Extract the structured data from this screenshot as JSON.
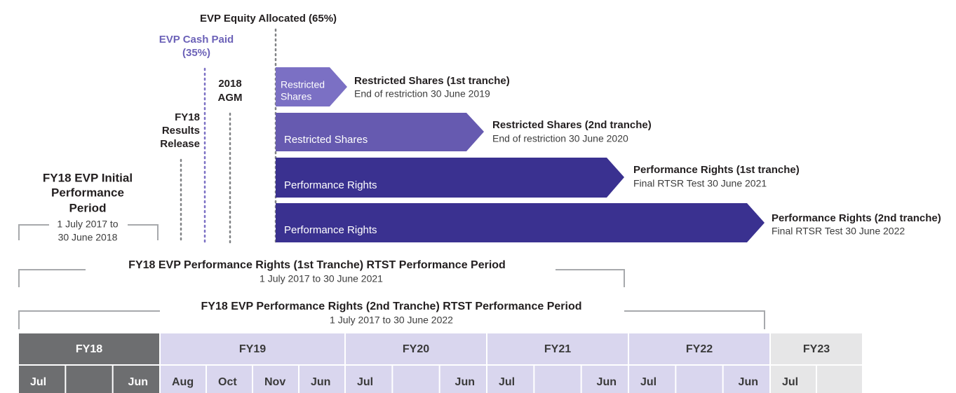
{
  "labels": {
    "equity_allocated": "EVP Equity Allocated (65%)",
    "cash_paid": [
      "EVP Cash Paid",
      "(35%)"
    ],
    "agm": [
      "2018",
      "AGM"
    ],
    "results_release": [
      "FY18",
      "Results",
      "Release"
    ],
    "initial_period": {
      "title": [
        "FY18 EVP Initial",
        "Performance",
        "Period"
      ],
      "sub": [
        "1 July 2017 to",
        "30 June 2018"
      ]
    }
  },
  "bars": [
    {
      "label": [
        "Restricted",
        "Shares"
      ],
      "title": "Restricted Shares (1st tranche)",
      "sub": "End of restriction 30 June 2019"
    },
    {
      "label": [
        "Restricted Shares"
      ],
      "title": "Restricted Shares (2nd tranche)",
      "sub": "End of restriction 30 June 2020"
    },
    {
      "label": [
        "Performance Rights"
      ],
      "title": "Performance Rights (1st tranche)",
      "sub": "Final RTSR Test 30 June 2021"
    },
    {
      "label": [
        "Performance Rights"
      ],
      "title": "Performance Rights (2nd tranche)",
      "sub": "Final RTSR Test 30 June 2022"
    }
  ],
  "brackets": [
    {
      "title": "FY18 EVP Performance Rights (1st Tranche) RTST Performance Period",
      "sub": "1 July 2017 to 30 June 2021"
    },
    {
      "title": "FY18 EVP Performance Rights (2nd Tranche) RTST Performance Period",
      "sub": "1 July 2017 to 30 June 2022"
    }
  ],
  "timeline": [
    {
      "year": "FY18",
      "months": [
        "Jul",
        null,
        "Jun"
      ]
    },
    {
      "year": "FY19",
      "months": [
        "Aug",
        "Oct",
        "Nov",
        "Jun"
      ]
    },
    {
      "year": "FY20",
      "months": [
        "Jul",
        null,
        "Jun"
      ]
    },
    {
      "year": "FY21",
      "months": [
        "Jul",
        null,
        "Jun"
      ]
    },
    {
      "year": "FY22",
      "months": [
        "Jul",
        null,
        "Jun"
      ]
    },
    {
      "year": "FY23",
      "months": [
        "Jul",
        null
      ]
    }
  ]
}
